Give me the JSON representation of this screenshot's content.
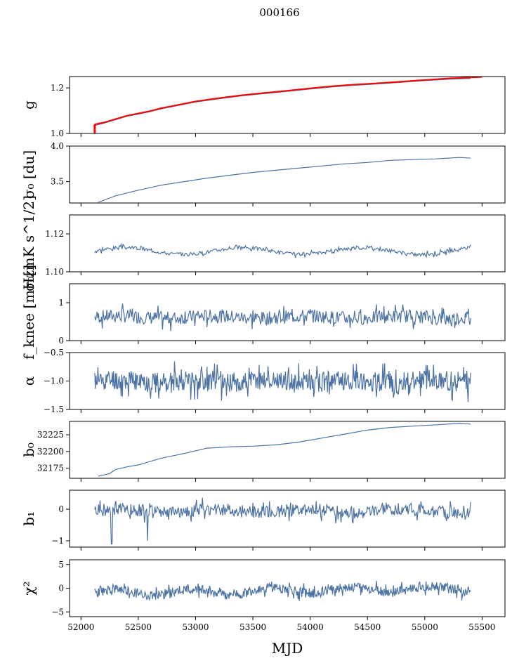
{
  "title": "000166",
  "colors": {
    "series": "#4c72a4",
    "fit": "#ff0000",
    "axis": "#000000"
  },
  "chart_data": {
    "type": "line",
    "xlabel": "MJD",
    "xlim": [
      51900,
      55700
    ],
    "xticks": [
      52000,
      52500,
      53000,
      53500,
      54000,
      54500,
      55000,
      55500
    ],
    "xticklabels": [
      "52000",
      "52500",
      "53000",
      "53500",
      "54000",
      "54500",
      "55000",
      "55500"
    ],
    "panels": [
      {
        "ylabel": "g",
        "ylim": [
          1.0,
          1.25
        ],
        "yticks": [
          1.0,
          1.2
        ],
        "yticklabels": [
          "1.0",
          "1.2"
        ],
        "series": [
          {
            "x": [
              52120,
              52200,
              52300,
              52400,
              52500,
              52600,
              52700,
              52800,
              52900,
              53000,
              53200,
              53400,
              53600,
              53800,
              54000,
              54200,
              54400,
              54600,
              54800,
              55000,
              55200,
              55400
            ],
            "y": [
              1.035,
              1.045,
              1.06,
              1.075,
              1.085,
              1.095,
              1.108,
              1.118,
              1.128,
              1.138,
              1.152,
              1.165,
              1.175,
              1.185,
              1.195,
              1.205,
              1.212,
              1.218,
              1.225,
              1.232,
              1.238,
              1.242
            ]
          },
          {
            "x": [
              52120,
              52200,
              52300,
              52400,
              52500,
              52600,
              52700,
              52800,
              52900,
              53000,
              53200,
              53400,
              53600,
              53800,
              54000,
              54200,
              54400,
              54600,
              54800,
              55000,
              55200,
              55500
            ],
            "y": [
              1.04,
              1.048,
              1.063,
              1.078,
              1.088,
              1.098,
              1.111,
              1.121,
              1.131,
              1.141,
              1.155,
              1.168,
              1.178,
              1.188,
              1.198,
              1.208,
              1.215,
              1.221,
              1.228,
              1.235,
              1.242,
              1.248
            ]
          }
        ]
      },
      {
        "ylabel": "σ₀ [du]",
        "ylim": [
          3.2,
          4.0
        ],
        "yticks": [
          3.5,
          4.0
        ],
        "yticklabels": [
          "3.5",
          "4.0"
        ],
        "series": [
          {
            "x": [
              52150,
              52300,
              52500,
              52700,
              52900,
              53100,
              53300,
              53500,
              53700,
              53900,
              54100,
              54300,
              54500,
              54700,
              54900,
              55100,
              55300,
              55400
            ],
            "y": [
              3.21,
              3.3,
              3.38,
              3.45,
              3.5,
              3.55,
              3.59,
              3.63,
              3.66,
              3.69,
              3.72,
              3.75,
              3.77,
              3.8,
              3.81,
              3.82,
              3.84,
              3.83
            ]
          }
        ]
      },
      {
        "ylabel": "σ₀[mK s^1/2]",
        "ylim": [
          1.1,
          1.13
        ],
        "yticks": [
          1.1,
          1.12
        ],
        "yticklabels": [
          "1.10",
          "1.12"
        ],
        "series": [
          {
            "base": 1.111,
            "amp": 0.0018,
            "noise": 0.0012,
            "seed": 3,
            "x_start": 52120,
            "x_end": 55400,
            "n": 400
          }
        ]
      },
      {
        "ylabel": "f_knee [mHz]",
        "ylim": [
          0,
          1.5
        ],
        "yticks": [
          0,
          1
        ],
        "yticklabels": [
          "0",
          "1"
        ],
        "series": [
          {
            "base": 0.62,
            "amp": 0.03,
            "noise": 0.22,
            "seed": 7,
            "x_start": 52120,
            "x_end": 55400,
            "n": 500
          }
        ]
      },
      {
        "ylabel": "α",
        "ylim": [
          -1.5,
          -0.5
        ],
        "yticks": [
          -1.5,
          -1.0,
          -0.5
        ],
        "yticklabels": [
          "−1.5",
          "−1.0",
          "−0.5"
        ],
        "series": [
          {
            "base": -1.0,
            "amp": 0.02,
            "noise": 0.22,
            "seed": 11,
            "x_start": 52120,
            "x_end": 55400,
            "n": 600
          }
        ]
      },
      {
        "ylabel": "b₀",
        "ylim": [
          32160,
          32245
        ],
        "yticks": [
          32175,
          32200,
          32225
        ],
        "yticklabels": [
          "32175",
          "32200",
          "32225"
        ],
        "series": [
          {
            "x": [
              52150,
              52250,
              52300,
              52400,
              52500,
              52600,
              52700,
              52900,
              53100,
              53300,
              53500,
              53700,
              53900,
              54100,
              54300,
              54500,
              54700,
              54900,
              55100,
              55300,
              55400
            ],
            "y": [
              32163,
              32167,
              32173,
              32177,
              32180,
              32185,
              32190,
              32197,
              32205,
              32207,
              32208,
              32210,
              32214,
              32220,
              32226,
              32232,
              32236,
              32238,
              32240,
              32242,
              32241
            ]
          }
        ]
      },
      {
        "ylabel": "b₁",
        "ylim": [
          -1.2,
          0.6
        ],
        "yticks": [
          -1,
          0
        ],
        "yticklabels": [
          "−1",
          "0"
        ],
        "series": [
          {
            "base": -0.05,
            "amp": 0.05,
            "noise": 0.25,
            "seed": 19,
            "x_start": 52120,
            "x_end": 55400,
            "n": 500,
            "dips": [
              [
                52270,
                -1.1
              ],
              [
                52580,
                -1.0
              ]
            ]
          }
        ]
      },
      {
        "ylabel": "χ²",
        "ylim": [
          -6,
          6
        ],
        "yticks": [
          -5,
          0,
          5
        ],
        "yticklabels": [
          "−5",
          "0",
          "5"
        ],
        "series": [
          {
            "base": -1.0,
            "amp": 0.6,
            "noise": 1.3,
            "seed": 23,
            "x_start": 52120,
            "x_end": 55400,
            "n": 600,
            "trend": 1.0
          }
        ]
      }
    ]
  }
}
